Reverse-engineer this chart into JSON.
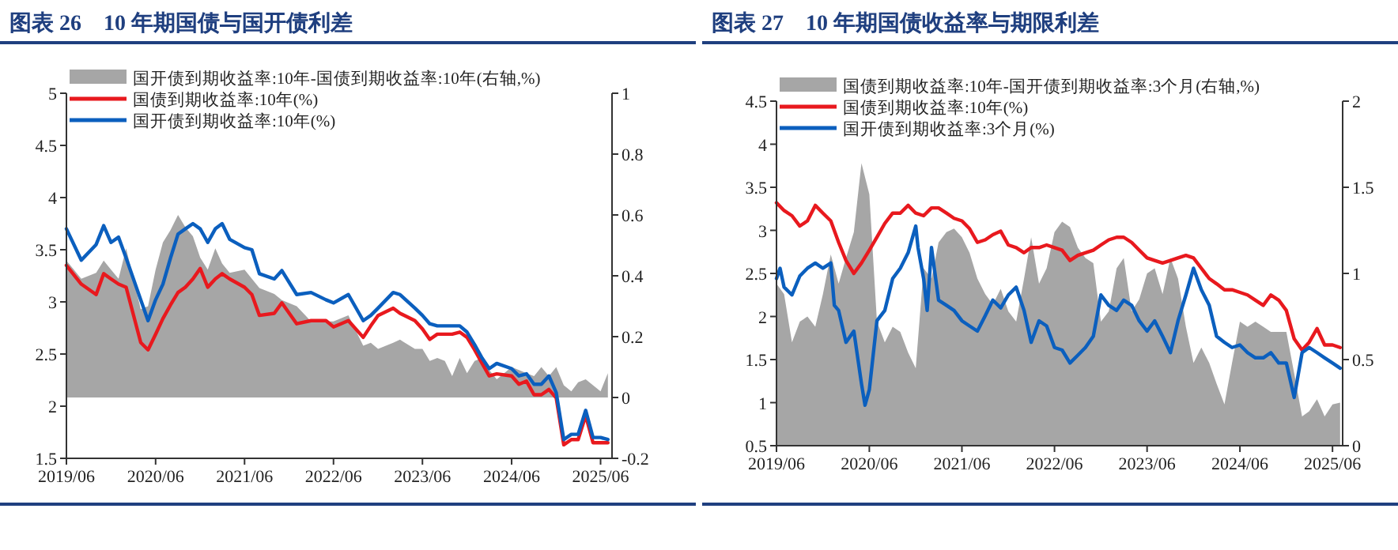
{
  "chart_data": [
    {
      "type": "line",
      "title": "图表 26　10 年期国债与国开债利差",
      "legend": "top left",
      "xlim": [
        "2019-06",
        "2025-07-18"
      ],
      "xticks": [
        {
          "value": "2019-06",
          "label": "2019/06"
        },
        {
          "value": "2020-06",
          "label": "2020/06"
        },
        {
          "value": "2021-06",
          "label": "2021/06"
        },
        {
          "value": "2022-06",
          "label": "2022/06"
        },
        {
          "value": "2023-06",
          "label": "2023/06"
        },
        {
          "value": "2024-06",
          "label": "2024/06"
        },
        {
          "value": "2025-06",
          "label": "2025/06"
        }
      ],
      "ylim": [
        1.5,
        5
      ],
      "yticks": [
        1.5,
        2,
        2.5,
        3,
        3.5,
        4,
        4.5,
        5
      ],
      "y2lim": [
        -0.2,
        1
      ],
      "y2ticks": [
        -0.2,
        0,
        0.2,
        0.4,
        0.6,
        0.8,
        1
      ],
      "x": [
        "2019-06",
        "2019-08",
        "2019-10",
        "2019-11",
        "2019-12",
        "2020-01",
        "2020-02",
        "2020-04",
        "2020-05",
        "2020-06",
        "2020-07",
        "2020-08",
        "2020-09",
        "2020-10",
        "2020-11",
        "2020-12",
        "2021-01",
        "2021-02",
        "2021-03",
        "2021-04",
        "2021-06",
        "2021-07",
        "2021-08",
        "2021-10",
        "2021-11",
        "2022-01",
        "2022-03",
        "2022-05",
        "2022-06",
        "2022-08",
        "2022-10",
        "2022-11",
        "2022-12",
        "2023-02",
        "2023-03",
        "2023-05",
        "2023-06",
        "2023-07",
        "2023-08",
        "2023-09",
        "2023-10",
        "2023-11",
        "2023-12",
        "2024-01",
        "2024-02",
        "2024-03",
        "2024-04",
        "2024-06",
        "2024-07",
        "2024-08",
        "2024-09",
        "2024-10",
        "2024-11",
        "2024-12",
        "2025-01",
        "2025-02",
        "2025-03",
        "2025-04",
        "2025-05",
        "2025-06",
        "2025-07"
      ],
      "series": [
        {
          "name": "国开债到期收益率:10年-国债到期收益率:10年(右轴,%)",
          "type": "area",
          "axis": "y2",
          "color": "#a6a6a6",
          "values": [
            0.45,
            0.39,
            0.41,
            0.45,
            0.42,
            0.39,
            0.49,
            0.29,
            0.3,
            0.42,
            0.51,
            0.55,
            0.6,
            0.56,
            0.53,
            0.46,
            0.42,
            0.49,
            0.44,
            0.41,
            0.42,
            0.39,
            0.36,
            0.34,
            0.32,
            0.3,
            0.25,
            0.25,
            0.25,
            0.27,
            0.17,
            0.18,
            0.16,
            0.18,
            0.19,
            0.16,
            0.16,
            0.12,
            0.13,
            0.12,
            0.07,
            0.13,
            0.08,
            0.12,
            0.13,
            0.09,
            0.06,
            0.1,
            0.09,
            0.08,
            0.07,
            0.1,
            0.07,
            0.1,
            0.04,
            0.02,
            0.05,
            0.06,
            0.04,
            0.02,
            0.08
          ]
        },
        {
          "name": "国债到期收益率:10年(%)",
          "color": "#e8191e",
          "values": [
            3.35,
            3.17,
            3.07,
            3.27,
            3.22,
            3.17,
            3.14,
            2.61,
            2.54,
            2.69,
            2.84,
            2.97,
            3.09,
            3.14,
            3.22,
            3.32,
            3.14,
            3.22,
            3.27,
            3.22,
            3.14,
            3.07,
            2.87,
            2.89,
            2.99,
            2.79,
            2.82,
            2.82,
            2.76,
            2.82,
            2.66,
            2.77,
            2.87,
            2.94,
            2.89,
            2.82,
            2.74,
            2.64,
            2.69,
            2.69,
            2.69,
            2.71,
            2.66,
            2.54,
            2.41,
            2.29,
            2.31,
            2.29,
            2.21,
            2.24,
            2.11,
            2.11,
            2.16,
            2.08,
            1.63,
            1.68,
            1.68,
            1.91,
            1.65,
            1.65,
            1.65
          ]
        },
        {
          "name": "国开债到期收益率:10年(%)",
          "color": "#0b5fbe",
          "values": [
            3.7,
            3.4,
            3.55,
            3.73,
            3.57,
            3.62,
            3.42,
            3.02,
            2.82,
            3.02,
            3.17,
            3.42,
            3.65,
            3.7,
            3.75,
            3.7,
            3.57,
            3.7,
            3.75,
            3.6,
            3.52,
            3.5,
            3.27,
            3.22,
            3.3,
            3.07,
            3.09,
            3.02,
            2.99,
            3.07,
            2.82,
            2.87,
            2.94,
            3.09,
            3.07,
            2.94,
            2.87,
            2.79,
            2.77,
            2.77,
            2.77,
            2.77,
            2.71,
            2.59,
            2.46,
            2.36,
            2.41,
            2.36,
            2.29,
            2.31,
            2.21,
            2.21,
            2.29,
            2.13,
            1.68,
            1.73,
            1.73,
            1.96,
            1.7,
            1.7,
            1.68
          ]
        }
      ]
    },
    {
      "type": "line",
      "title": "图表 27　10 年期国债收益率与期限利差",
      "legend": "top left",
      "xlim": [
        "2019-06",
        "2025-07-11"
      ],
      "xticks": [
        {
          "value": "2019-06",
          "label": "2019/06"
        },
        {
          "value": "2020-06",
          "label": "2020/06"
        },
        {
          "value": "2021-06",
          "label": "2021/06"
        },
        {
          "value": "2022-06",
          "label": "2022/06"
        },
        {
          "value": "2023-06",
          "label": "2023/06"
        },
        {
          "value": "2024-06",
          "label": "2024/06"
        },
        {
          "value": "2025-06",
          "label": "2025/06"
        }
      ],
      "ylim": [
        0.5,
        4.5
      ],
      "yticks": [
        0.5,
        1,
        1.5,
        2,
        2.5,
        3,
        3.5,
        4,
        4.5
      ],
      "y2lim": [
        0,
        2
      ],
      "y2ticks": [
        0,
        0.5,
        1,
        1.5,
        2
      ],
      "x": [
        "2019-06",
        "2019-07",
        "2019-08",
        "2019-09",
        "2019-10",
        "2019-11",
        "2019-12",
        "2020-01",
        "2020-02",
        "2020-03",
        "2020-04",
        "2020-05",
        "2020-06",
        "2020-07",
        "2020-08",
        "2020-09",
        "2020-10",
        "2020-11",
        "2020-12",
        "2021-01",
        "2021-02",
        "2021-03",
        "2021-04",
        "2021-05",
        "2021-06",
        "2021-07",
        "2021-08",
        "2021-09",
        "2021-10",
        "2021-11",
        "2021-12",
        "2022-01",
        "2022-02",
        "2022-03",
        "2022-04",
        "2022-05",
        "2022-06",
        "2022-07",
        "2022-08",
        "2022-09",
        "2022-10",
        "2022-11",
        "2022-12",
        "2023-01",
        "2023-02",
        "2023-03",
        "2023-04",
        "2023-05",
        "2023-06",
        "2023-07",
        "2023-08",
        "2023-09",
        "2023-10",
        "2023-11",
        "2023-12",
        "2024-01",
        "2024-02",
        "2024-03",
        "2024-04",
        "2024-05",
        "2024-06",
        "2024-07",
        "2024-08",
        "2024-09",
        "2024-10",
        "2024-11",
        "2024-12",
        "2025-01",
        "2025-02",
        "2025-03",
        "2025-04",
        "2025-05",
        "2025-06",
        "2025-07"
      ],
      "series": [
        {
          "name": "国债到期收益率:10年-国开债到期收益率:3个月(右轴,%)",
          "type": "area",
          "axis": "y2",
          "color": "#a6a6a6",
          "values": [
            0.94,
            0.88,
            0.6,
            0.72,
            0.75,
            0.69,
            0.88,
            1.11,
            0.94,
            1.09,
            1.24,
            1.64,
            1.46,
            0.72,
            0.6,
            0.69,
            0.66,
            0.54,
            0.45,
            1.03,
            0.97,
            1.18,
            1.24,
            1.26,
            1.21,
            1.12,
            0.97,
            0.88,
            0.82,
            0.91,
            0.78,
            0.72,
            0.97,
            1.21,
            0.94,
            1.03,
            1.24,
            1.3,
            1.27,
            1.15,
            1.09,
            1.06,
            0.72,
            0.78,
            1.03,
            1.09,
            0.78,
            0.85,
            1.0,
            1.03,
            0.88,
            1.09,
            0.97,
            0.69,
            0.48,
            0.57,
            0.48,
            0.36,
            0.24,
            0.48,
            0.72,
            0.69,
            0.72,
            0.69,
            0.66,
            0.66,
            0.66,
            0.42,
            0.17,
            0.2,
            0.27,
            0.17,
            0.24,
            0.25
          ]
        },
        {
          "name": "国债到期收益率:10年(%)",
          "color": "#e8191e",
          "values": [
            3.32,
            3.23,
            3.17,
            3.05,
            3.11,
            3.29,
            3.2,
            3.11,
            2.86,
            2.65,
            2.5,
            2.62,
            2.77,
            2.92,
            3.08,
            3.2,
            3.2,
            3.29,
            3.2,
            3.17,
            3.26,
            3.26,
            3.2,
            3.14,
            3.11,
            3.02,
            2.86,
            2.89,
            2.95,
            2.99,
            2.83,
            2.8,
            2.74,
            2.8,
            2.8,
            2.83,
            2.8,
            2.77,
            2.65,
            2.71,
            2.74,
            2.77,
            2.83,
            2.89,
            2.92,
            2.92,
            2.86,
            2.77,
            2.68,
            2.65,
            2.62,
            2.65,
            2.68,
            2.71,
            2.68,
            2.56,
            2.44,
            2.38,
            2.31,
            2.31,
            2.28,
            2.25,
            2.19,
            2.13,
            2.25,
            2.19,
            2.07,
            1.74,
            1.61,
            1.7,
            1.86,
            1.67,
            1.67,
            1.64
          ]
        },
        {
          "name": "国开债到期收益率:3个月(%)",
          "color": "#0b5fbe",
          "x": [
            "2019-06",
            "2019-06-15",
            "2019-07",
            "2019-08",
            "2019-09",
            "2019-10",
            "2019-11",
            "2019-12",
            "2020-01",
            "2020-01-15",
            "2020-02",
            "2020-03",
            "2020-04",
            "2020-05",
            "2020-05-15",
            "2020-06",
            "2020-07",
            "2020-08",
            "2020-09",
            "2020-10",
            "2020-11",
            "2020-12",
            "2020-12-10",
            "2021-01",
            "2021-01-15",
            "2021-02",
            "2021-03",
            "2021-04",
            "2021-05",
            "2021-06",
            "2021-07",
            "2021-08",
            "2021-09",
            "2021-10",
            "2021-11",
            "2021-12",
            "2022-01",
            "2022-02",
            "2022-03",
            "2022-04",
            "2022-05",
            "2022-06",
            "2022-07",
            "2022-08",
            "2022-09",
            "2022-10",
            "2022-11",
            "2022-12",
            "2023-01",
            "2023-02",
            "2023-03",
            "2023-04",
            "2023-05",
            "2023-06",
            "2023-07",
            "2023-08",
            "2023-09",
            "2023-10",
            "2023-11",
            "2023-12",
            "2024-01",
            "2024-02",
            "2024-03",
            "2024-04",
            "2024-05",
            "2024-06",
            "2024-07",
            "2024-08",
            "2024-09",
            "2024-10",
            "2024-11",
            "2024-12",
            "2025-01",
            "2025-02",
            "2025-03",
            "2025-04",
            "2025-05",
            "2025-06",
            "2025-07"
          ],
          "values": [
            2.44,
            2.56,
            2.34,
            2.25,
            2.47,
            2.56,
            2.62,
            2.56,
            2.62,
            2.13,
            2.07,
            1.7,
            1.83,
            1.22,
            0.97,
            1.15,
            1.95,
            2.07,
            2.44,
            2.56,
            2.74,
            3.05,
            2.8,
            2.44,
            2.07,
            2.8,
            2.19,
            2.13,
            2.07,
            1.95,
            1.89,
            1.83,
            2.01,
            2.19,
            2.1,
            2.25,
            2.34,
            2.07,
            1.7,
            1.95,
            1.89,
            1.64,
            1.61,
            1.46,
            1.55,
            1.64,
            1.77,
            2.25,
            2.13,
            2.07,
            2.19,
            2.13,
            1.95,
            1.83,
            1.95,
            1.77,
            1.58,
            1.95,
            2.25,
            2.56,
            2.31,
            2.13,
            1.77,
            1.7,
            1.64,
            1.67,
            1.58,
            1.52,
            1.52,
            1.58,
            1.46,
            1.46,
            1.06,
            1.58,
            1.64,
            1.58,
            1.52,
            1.46,
            1.4
          ]
        }
      ]
    }
  ]
}
